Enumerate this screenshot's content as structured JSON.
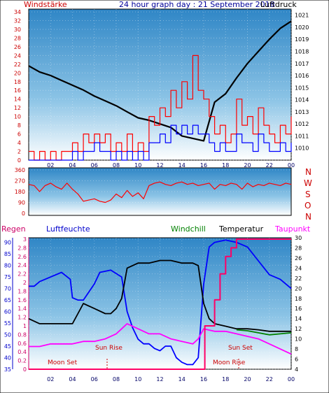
{
  "header": {
    "title": "24 hour graph day : 21 September 2018",
    "left_label": "Windstärke",
    "right_label": "Luftdruck"
  },
  "mid_labels": [
    "N",
    "W",
    "S",
    "O",
    "N"
  ],
  "lower_header": {
    "regen": "Regen",
    "luftfeuchte": "Luftfeuchte",
    "windchill": "Windchill",
    "temperatur": "Temperatur",
    "taupunkt": "Taupunkt"
  },
  "annotations": {
    "moon_set_1": "Moon Set",
    "sun_rise": "Sun Rise",
    "sun_set": "Sun Set",
    "moon_set_2": "Moon Rise"
  },
  "colors": {
    "wind_speed": "#ff0000",
    "wind_avg": "#0000ff",
    "pressure": "#000000",
    "direction": "#ff0000",
    "humidity": "#0000ff",
    "temperature": "#000000",
    "windchill": "#008000",
    "dewpoint": "#ff00ff",
    "rain": "#ff0066",
    "sunrise_marker": "#cc0000"
  },
  "chart_data": [
    {
      "type": "line",
      "title": "24 hour graph day : 21 September 2018",
      "x_ticks": [
        "02",
        "04",
        "06",
        "08",
        "10",
        "12",
        "14",
        "16",
        "18",
        "20",
        "22",
        "00"
      ],
      "x_range": [
        0,
        24
      ],
      "left_axis": {
        "label": "Windstärke",
        "range": [
          0,
          34
        ],
        "ticks": [
          0,
          2,
          4,
          6,
          8,
          10,
          12,
          14,
          16,
          18,
          20,
          22,
          24,
          26,
          28,
          30,
          32,
          34
        ]
      },
      "right_axis": {
        "label": "Luftdruck",
        "range": [
          1009,
          1021.5
        ],
        "ticks": [
          1010,
          1011,
          1012,
          1013,
          1014,
          1015,
          1016,
          1017,
          1018,
          1019,
          1020,
          1021
        ]
      },
      "series": [
        {
          "name": "Luftdruck",
          "axis": "right",
          "x": [
            0,
            1,
            2,
            3,
            4,
            5,
            6,
            7,
            8,
            9,
            10,
            11,
            12,
            13,
            14,
            15,
            16,
            17,
            18,
            19,
            20,
            21,
            22,
            23,
            24
          ],
          "y": [
            1016.8,
            1016.3,
            1016.0,
            1015.6,
            1015.2,
            1014.8,
            1014.3,
            1013.9,
            1013.5,
            1013.0,
            1012.5,
            1012.3,
            1012.0,
            1011.7,
            1011.0,
            1010.8,
            1010.6,
            1013.8,
            1014.5,
            1015.8,
            1017.0,
            1018.0,
            1019.0,
            1019.9,
            1020.5
          ]
        },
        {
          "name": "Windstärke (Böen)",
          "axis": "left",
          "x": [
            0,
            0.5,
            1,
            1.5,
            2,
            2.5,
            3,
            3.5,
            4,
            4.5,
            5,
            5.5,
            6,
            6.5,
            7,
            7.5,
            8,
            8.5,
            9,
            9.5,
            10,
            10.5,
            11,
            11.5,
            12,
            12.5,
            13,
            13.5,
            14,
            14.5,
            15,
            15.5,
            16,
            16.5,
            17,
            17.5,
            18,
            18.5,
            19,
            19.5,
            20,
            20.5,
            21,
            21.5,
            22,
            22.5,
            23,
            23.5,
            24
          ],
          "y": [
            2,
            0,
            2,
            0,
            2,
            0,
            2,
            2,
            4,
            2,
            6,
            4,
            6,
            4,
            6,
            2,
            4,
            2,
            6,
            2,
            4,
            2,
            10,
            8,
            12,
            10,
            16,
            12,
            18,
            14,
            24,
            16,
            14,
            10,
            6,
            8,
            4,
            6,
            14,
            8,
            10,
            6,
            12,
            8,
            6,
            4,
            8,
            6,
            10
          ]
        },
        {
          "name": "Windstärke (Mittel)",
          "axis": "left",
          "x": [
            0,
            0.5,
            1,
            1.5,
            2,
            2.5,
            3,
            3.5,
            4,
            4.5,
            5,
            5.5,
            6,
            6.5,
            7,
            7.5,
            8,
            8.5,
            9,
            9.5,
            10,
            10.5,
            11,
            11.5,
            12,
            12.5,
            13,
            13.5,
            14,
            14.5,
            15,
            15.5,
            16,
            16.5,
            17,
            17.5,
            18,
            18.5,
            19,
            19.5,
            20,
            20.5,
            21,
            21.5,
            22,
            22.5,
            23,
            23.5,
            24
          ],
          "y": [
            0,
            0,
            0,
            0,
            0,
            0,
            0,
            0,
            2,
            0,
            2,
            2,
            4,
            2,
            2,
            0,
            2,
            0,
            2,
            0,
            2,
            0,
            4,
            4,
            6,
            4,
            8,
            6,
            8,
            6,
            8,
            6,
            6,
            4,
            2,
            4,
            2,
            2,
            6,
            4,
            4,
            2,
            6,
            4,
            2,
            2,
            4,
            2,
            4
          ]
        }
      ]
    },
    {
      "type": "line",
      "title": "",
      "x_range": [
        0,
        24
      ],
      "left_axis": {
        "range": [
          0,
          360
        ],
        "ticks": [
          0,
          90,
          180,
          270,
          360
        ]
      },
      "series": [
        {
          "name": "Windrichtung",
          "x": [
            0,
            0.5,
            1,
            1.5,
            2,
            2.5,
            3,
            3.5,
            4,
            4.5,
            5,
            5.5,
            6,
            6.5,
            7,
            7.5,
            8,
            8.5,
            9,
            9.5,
            10,
            10.5,
            11,
            11.5,
            12,
            12.5,
            13,
            13.5,
            14,
            14.5,
            15,
            15.5,
            16,
            16.5,
            17,
            17.5,
            18,
            18.5,
            19,
            19.5,
            20,
            20.5,
            21,
            21.5,
            22,
            22.5,
            23,
            23.5,
            24
          ],
          "y": [
            240,
            230,
            180,
            230,
            250,
            220,
            200,
            250,
            200,
            160,
            100,
            110,
            120,
            100,
            90,
            110,
            160,
            130,
            190,
            140,
            170,
            120,
            230,
            250,
            260,
            240,
            230,
            250,
            260,
            240,
            250,
            230,
            240,
            250,
            200,
            240,
            230,
            250,
            240,
            200,
            250,
            220,
            240,
            230,
            250,
            240,
            230,
            250,
            240
          ]
        }
      ]
    },
    {
      "type": "line",
      "title": "",
      "x_ticks": [
        "02",
        "04",
        "06",
        "08",
        "10",
        "12",
        "14",
        "16",
        "18",
        "20",
        "22",
        "00"
      ],
      "x_range": [
        0,
        24
      ],
      "axes": {
        "regen": {
          "label": "Regen",
          "range": [
            0,
            3
          ],
          "ticks": [
            0,
            0.2,
            0.4,
            0.6,
            0.8,
            1,
            1.2,
            1.4,
            1.6,
            1.8,
            2,
            2.2,
            2.4,
            2.6,
            2.8,
            3
          ]
        },
        "luftfeuchte": {
          "label": "Luftfeuchte",
          "range": [
            35,
            92
          ],
          "ticks": [
            35,
            40,
            45,
            50,
            55,
            60,
            65,
            70,
            75,
            80,
            85,
            90
          ]
        },
        "temperatur": {
          "label": "Temperatur",
          "range": [
            4,
            30
          ],
          "ticks": [
            4,
            6,
            8,
            10,
            12,
            14,
            16,
            18,
            20,
            22,
            24,
            26,
            28,
            30
          ]
        }
      },
      "series": [
        {
          "name": "Luftfeuchte",
          "axis": "luftfeuchte",
          "x": [
            0,
            0.5,
            1,
            2,
            3,
            3.8,
            4,
            4.5,
            5,
            6,
            6.5,
            7.5,
            8.5,
            9,
            9.5,
            10,
            10.5,
            11,
            11.5,
            12,
            12.5,
            13,
            13.5,
            14,
            14.5,
            15,
            15.5,
            16,
            16.5,
            17,
            18,
            19,
            20,
            21,
            22,
            23,
            24
          ],
          "y": [
            71,
            71,
            73,
            75,
            77,
            74,
            66,
            65,
            65,
            72,
            77,
            78,
            75,
            60,
            53,
            48,
            46,
            46,
            44,
            43,
            45,
            45,
            40,
            38,
            37,
            37,
            40,
            72,
            88,
            90,
            91,
            90,
            88,
            82,
            76,
            74,
            70
          ]
        },
        {
          "name": "Temperatur",
          "axis": "temperatur",
          "x": [
            0,
            0.5,
            1,
            2,
            3,
            4,
            4.5,
            5,
            6,
            7,
            7.5,
            8,
            8.5,
            9,
            10,
            11,
            12,
            13,
            14,
            15,
            15.5,
            16,
            16.5,
            17,
            18,
            19,
            20,
            21,
            22,
            23,
            24
          ],
          "y": [
            14,
            13.5,
            13,
            13,
            13,
            13,
            15,
            17,
            16,
            15,
            15,
            16,
            18,
            24,
            25,
            25,
            25.5,
            25.5,
            25,
            25,
            24.5,
            17,
            14,
            13,
            12.5,
            12,
            12,
            11.8,
            11.5,
            11.5,
            11.5
          ]
        },
        {
          "name": "Windchill",
          "axis": "temperatur",
          "x": [
            19,
            20,
            21,
            22,
            23,
            24
          ],
          "y": [
            11.8,
            11.6,
            11.2,
            10.8,
            11.0,
            11.2
          ]
        },
        {
          "name": "Taupunkt",
          "axis": "temperatur",
          "x": [
            0,
            1,
            2,
            3,
            4,
            5,
            6,
            7,
            8,
            8.5,
            9,
            10,
            11,
            12,
            13,
            14,
            15,
            15.5,
            16,
            17,
            18,
            19,
            20,
            21,
            22,
            23,
            24
          ],
          "y": [
            8.5,
            8.5,
            9,
            9,
            9,
            9.5,
            9.5,
            10,
            11,
            12,
            13,
            12,
            11,
            11,
            10,
            9.5,
            9,
            10,
            12,
            11.5,
            11.5,
            11,
            10.5,
            10,
            9,
            8,
            7
          ]
        },
        {
          "name": "Regen",
          "axis": "regen",
          "x": [
            0,
            16,
            16.1,
            17,
            17.5,
            18,
            18.5,
            19,
            24
          ],
          "y": [
            0,
            0,
            1.0,
            1.6,
            2.2,
            2.6,
            2.8,
            3.0,
            3.0
          ]
        }
      ]
    }
  ]
}
